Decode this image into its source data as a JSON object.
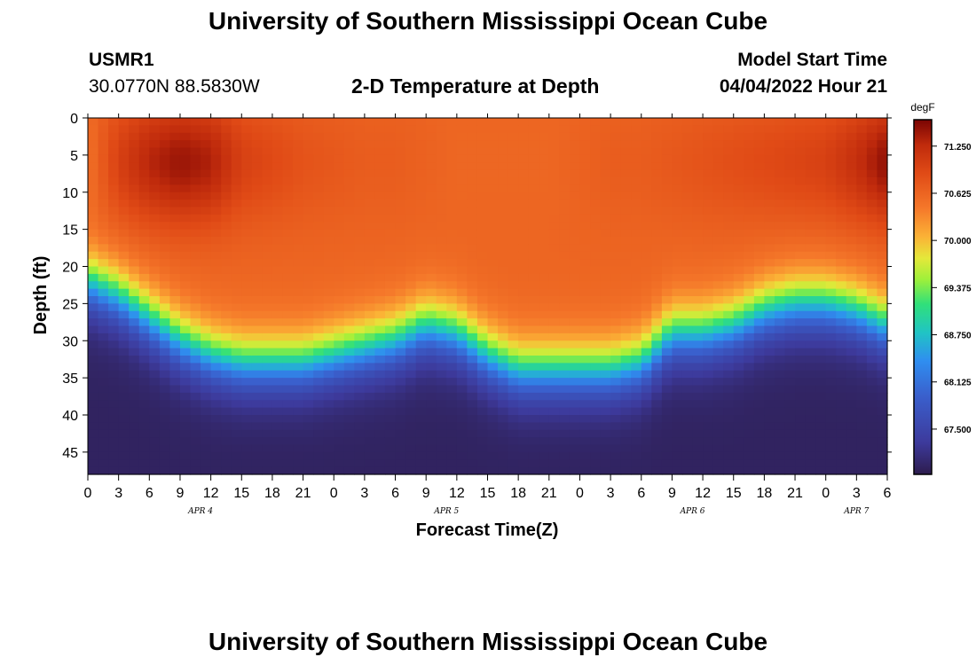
{
  "header": {
    "title": "University of Southern Mississippi Ocean Cube",
    "station_id": "USMR1",
    "station_coords": "30.0770N  88.5830W",
    "plot_title": "2-D Temperature at Depth",
    "model_label": "Model Start Time",
    "model_time": "04/04/2022 Hour 21"
  },
  "footer": {
    "title": "University of Southern Mississippi Ocean Cube"
  },
  "chart_data": {
    "type": "heatmap",
    "title": "2-D Temperature at Depth",
    "xlabel": "Forecast Time(Z)",
    "ylabel": "Depth (ft)",
    "colorbar_label": "degF",
    "colorbar_ticks": [
      "71.250",
      "70.625",
      "70.000",
      "69.375",
      "68.750",
      "68.125",
      "67.500"
    ],
    "colorbar_values": [
      71.25,
      70.625,
      70.0,
      69.375,
      68.75,
      68.125,
      67.5
    ],
    "vmin": 66.9,
    "vmax": 71.6,
    "xlim_hours": [
      0,
      78
    ],
    "ylim": [
      0,
      48
    ],
    "y_ticks": [
      "0",
      "5",
      "10",
      "15",
      "20",
      "25",
      "30",
      "35",
      "40",
      "45"
    ],
    "y_tick_values": [
      0,
      5,
      10,
      15,
      20,
      25,
      30,
      35,
      40,
      45
    ],
    "x_ticks": [
      "0",
      "3",
      "6",
      "9",
      "12",
      "15",
      "18",
      "21",
      "0",
      "3",
      "6",
      "9",
      "12",
      "15",
      "18",
      "21",
      "0",
      "3",
      "6",
      "9",
      "12",
      "15",
      "18",
      "21",
      "0",
      "3",
      "6"
    ],
    "date_labels": [
      {
        "label": "APR 4",
        "hour": 11
      },
      {
        "label": "APR 5",
        "hour": 35
      },
      {
        "label": "APR 6",
        "hour": 59
      },
      {
        "label": "APR 7",
        "hour": 75
      }
    ],
    "thermocline_depth_ft": {
      "hours": [
        0,
        3,
        6,
        9,
        12,
        15,
        18,
        21,
        24,
        27,
        30,
        33,
        36,
        39,
        42,
        45,
        48,
        51,
        54,
        57,
        60,
        63,
        66,
        69,
        72,
        75,
        78
      ],
      "values": [
        22,
        24,
        27,
        30,
        32,
        33,
        33,
        33,
        32,
        31,
        30,
        28,
        29,
        32,
        34,
        34,
        34,
        34,
        33,
        29,
        29,
        28,
        26,
        25,
        25,
        26,
        28
      ]
    },
    "surface_temp_degF": {
      "hours": [
        0,
        3,
        6,
        9,
        12,
        15,
        18,
        21,
        24,
        27,
        30,
        33,
        36,
        39,
        42,
        45,
        48,
        51,
        54,
        57,
        60,
        63,
        66,
        69,
        72,
        75,
        78
      ],
      "values": [
        70.5,
        71.0,
        71.3,
        71.45,
        71.35,
        71.0,
        70.9,
        70.8,
        70.75,
        70.7,
        70.7,
        70.65,
        70.6,
        70.6,
        70.6,
        70.6,
        70.65,
        70.7,
        70.7,
        70.75,
        70.8,
        70.85,
        70.9,
        70.95,
        71.0,
        71.2,
        71.5
      ]
    },
    "bottom_temp_degF": 67.0
  }
}
